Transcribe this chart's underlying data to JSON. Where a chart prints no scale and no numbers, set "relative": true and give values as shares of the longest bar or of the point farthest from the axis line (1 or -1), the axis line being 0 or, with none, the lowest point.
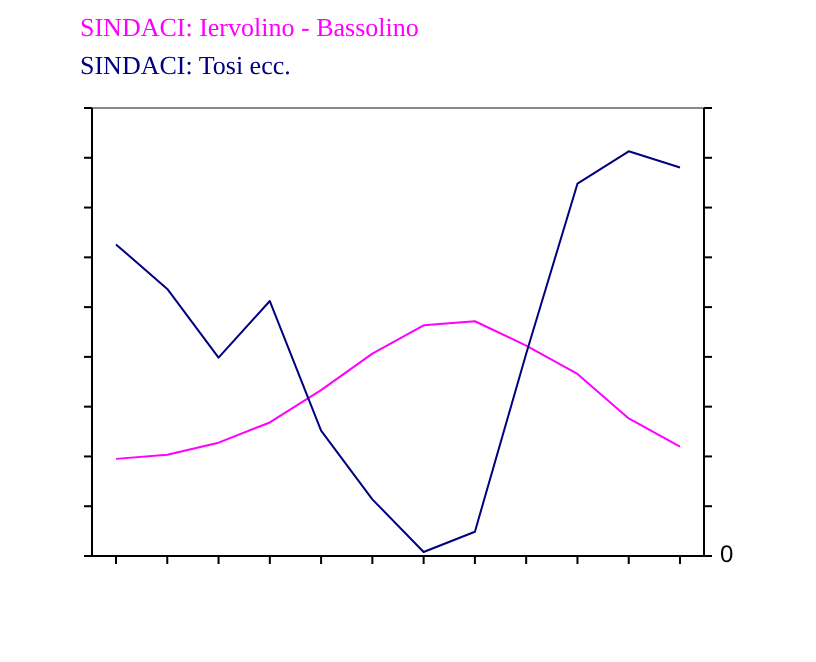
{
  "chart_data": {
    "type": "line",
    "relative": true,
    "categories": [
      null,
      null,
      null,
      null,
      null,
      null,
      null,
      null,
      null,
      null,
      null,
      null
    ],
    "series": [
      {
        "name": "SINDACI: Iervolino - Bassolino",
        "color": "#ff00ff",
        "values": [
          0.24,
          0.25,
          0.28,
          0.33,
          0.41,
          0.5,
          0.57,
          0.58,
          0.52,
          0.45,
          0.34,
          0.27
        ]
      },
      {
        "name": "SINDACI: Tosi ecc.",
        "color": "#000080",
        "values": [
          0.77,
          0.66,
          0.49,
          0.63,
          0.31,
          0.14,
          0.01,
          0.06,
          0.5,
          0.92,
          1,
          0.96
        ]
      }
    ],
    "annotations": [
      "0"
    ],
    "legend": "top left",
    "marker": "none",
    "grid": false
  }
}
